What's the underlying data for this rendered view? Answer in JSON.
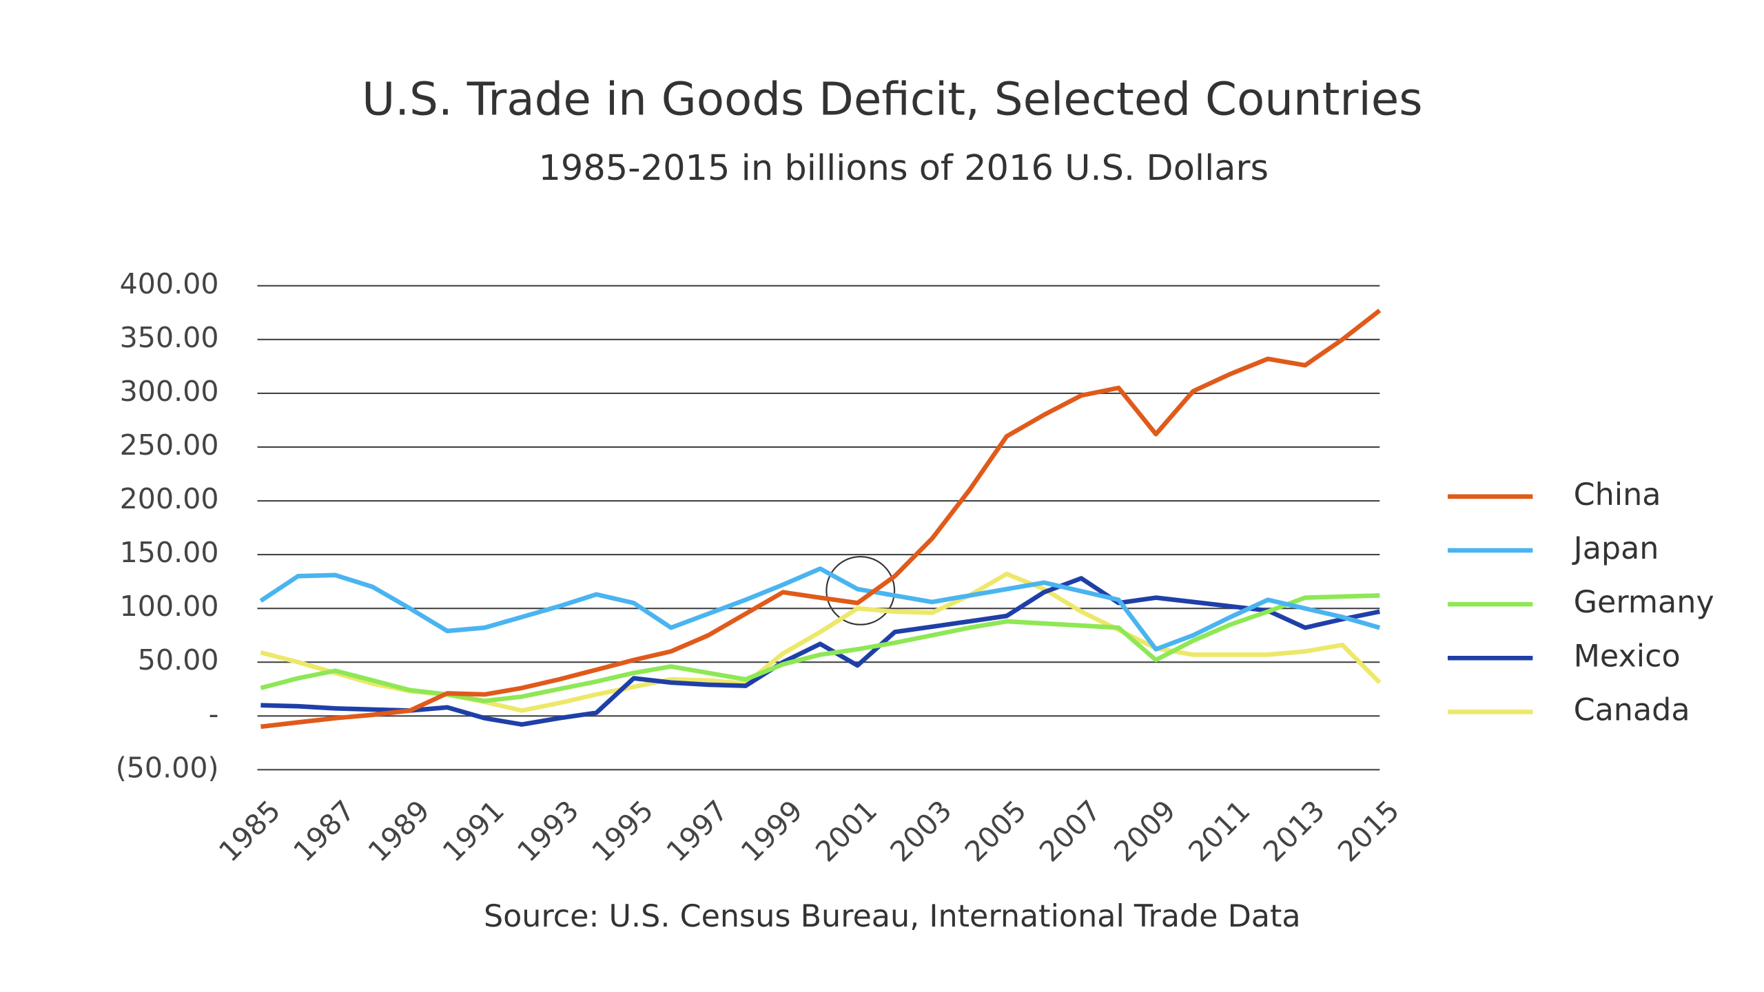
{
  "chart_data": {
    "type": "line",
    "title": "U.S. Trade in Goods Deficit, Selected Countries",
    "subtitle": "1985-2015 in billions of 2016 U.S. Dollars",
    "source": "Source: U.S. Census Bureau, International Trade Data",
    "x": [
      1985,
      1986,
      1987,
      1988,
      1989,
      1990,
      1991,
      1992,
      1993,
      1994,
      1995,
      1996,
      1997,
      1998,
      1999,
      2000,
      2001,
      2002,
      2003,
      2004,
      2005,
      2006,
      2007,
      2008,
      2009,
      2010,
      2011,
      2012,
      2013,
      2014,
      2015
    ],
    "xlim": [
      1985,
      2015
    ],
    "xticks": [
      1985,
      1987,
      1989,
      1991,
      1993,
      1995,
      1997,
      1999,
      2001,
      2003,
      2005,
      2007,
      2009,
      2011,
      2013,
      2015
    ],
    "ylim": [
      -50,
      400
    ],
    "yticks": [
      {
        "value": -50,
        "label": "(50.00)"
      },
      {
        "value": 0,
        "label": "-"
      },
      {
        "value": 50,
        "label": "50.00"
      },
      {
        "value": 100,
        "label": "100.00"
      },
      {
        "value": 150,
        "label": "150.00"
      },
      {
        "value": 200,
        "label": "200.00"
      },
      {
        "value": 250,
        "label": "250.00"
      },
      {
        "value": 300,
        "label": "300.00"
      },
      {
        "value": 350,
        "label": "350.00"
      },
      {
        "value": 400,
        "label": "400.00"
      }
    ],
    "grid": true,
    "legend": "right",
    "series": [
      {
        "name": "China",
        "color": "#e05a1a",
        "values": [
          -10,
          -6,
          -2,
          1,
          5,
          21,
          20,
          26,
          34,
          43,
          52,
          60,
          75,
          95,
          115,
          110,
          105,
          130,
          165,
          210,
          260,
          280,
          298,
          305,
          262,
          302,
          318,
          332,
          326,
          350,
          377
        ]
      },
      {
        "name": "Japan",
        "color": "#4ab4f0",
        "values": [
          107,
          130,
          131,
          120,
          100,
          79,
          82,
          92,
          102,
          113,
          105,
          82,
          95,
          108,
          122,
          137,
          118,
          112,
          106,
          112,
          118,
          124,
          116,
          108,
          62,
          75,
          92,
          108,
          100,
          92,
          82
        ]
      },
      {
        "name": "Germany",
        "color": "#8ee855",
        "values": [
          26,
          35,
          42,
          33,
          24,
          20,
          14,
          18,
          25,
          32,
          40,
          46,
          40,
          34,
          48,
          57,
          62,
          68,
          75,
          82,
          88,
          86,
          84,
          82,
          52,
          70,
          85,
          97,
          110,
          111,
          112
        ]
      },
      {
        "name": "Mexico",
        "color": "#1f3fa8",
        "values": [
          10,
          9,
          7,
          6,
          5,
          8,
          -2,
          -8,
          -2,
          3,
          35,
          31,
          29,
          28,
          50,
          67,
          47,
          78,
          83,
          88,
          93,
          115,
          128,
          105,
          110,
          106,
          102,
          98,
          82,
          90,
          97
        ]
      },
      {
        "name": "Canada",
        "color": "#ede86a",
        "values": [
          59,
          50,
          40,
          30,
          23,
          20,
          13,
          5,
          12,
          20,
          27,
          34,
          33,
          30,
          58,
          78,
          100,
          97,
          96,
          112,
          132,
          118,
          97,
          80,
          63,
          57,
          57,
          57,
          60,
          66,
          31
        ]
      }
    ]
  }
}
